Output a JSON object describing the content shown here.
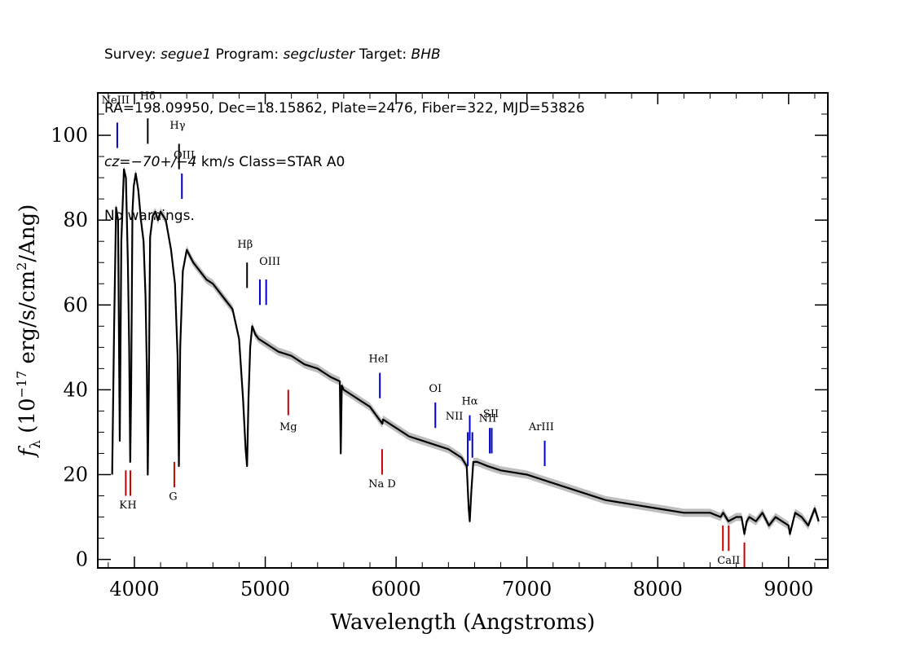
{
  "header": {
    "line1": {
      "survey_label": "Survey:",
      "survey_value": "segue1",
      "program_label": "Program:",
      "program_value": "segcluster",
      "target_label": "Target:",
      "target_value": "BHB"
    },
    "line2": "RA=198.09950, Dec=18.15862, Plate=2476, Fiber=322, MJD=53826",
    "line3": {
      "cz_label": "cz",
      "cz_value": "=−70+/−4",
      "cz_rest": " km/s Class=STAR A0"
    },
    "line4": "No warnings."
  },
  "chart_data": {
    "type": "line",
    "xlabel": "Wavelength (Angstroms)",
    "ylabel_parts": {
      "f": "f",
      "sub": "λ",
      "open": " (10",
      "exp": "−17",
      "mid": " erg/s/cm",
      "exp2": "2",
      "close": "/Ang)"
    },
    "xlim": [
      3720,
      9300
    ],
    "ylim": [
      -2,
      110
    ],
    "x_ticks": [
      4000,
      5000,
      6000,
      7000,
      8000,
      9000
    ],
    "x_tick_labels": [
      "4000",
      "5000",
      "6000",
      "7000",
      "8000",
      "9000"
    ],
    "y_ticks": [
      0,
      20,
      40,
      60,
      80,
      100
    ],
    "y_tick_labels": [
      "0",
      "20",
      "40",
      "60",
      "80",
      "100"
    ],
    "series": [
      {
        "color": "#000000",
        "x": [
          3830,
          3845,
          3860,
          3875,
          3888,
          3900,
          3920,
          3935,
          3950,
          3960,
          3968,
          3975,
          3985,
          3995,
          4010,
          4030,
          4050,
          4070,
          4085,
          4095,
          4102,
          4110,
          4120,
          4140,
          4160,
          4180,
          4200,
          4240,
          4280,
          4310,
          4330,
          4340,
          4350,
          4370,
          4400,
          4450,
          4500,
          4550,
          4600,
          4650,
          4700,
          4750,
          4800,
          4830,
          4850,
          4861,
          4872,
          4885,
          4900,
          4925,
          4950,
          5000,
          5100,
          5200,
          5300,
          5400,
          5500,
          5570,
          5577,
          5585,
          5600,
          5700,
          5800,
          5895,
          5900,
          6000,
          6100,
          6200,
          6300,
          6400,
          6500,
          6540,
          6555,
          6563,
          6575,
          6590,
          6620,
          6700,
          6800,
          7000,
          7200,
          7400,
          7600,
          7800,
          8000,
          8200,
          8400,
          8480,
          8500,
          8520,
          8540,
          8600,
          8640,
          8662,
          8680,
          8700,
          8750,
          8800,
          8850,
          8900,
          8950,
          9000,
          9010,
          9050,
          9100,
          9150,
          9200,
          9230
        ],
        "y": [
          20,
          55,
          83,
          80,
          28,
          75,
          92,
          90,
          70,
          50,
          23,
          40,
          82,
          88,
          91,
          87,
          80,
          75,
          62,
          45,
          20,
          40,
          76,
          81,
          82,
          80,
          82,
          80,
          73,
          65,
          48,
          22,
          50,
          68,
          73,
          70,
          68,
          66,
          65,
          63,
          61,
          59,
          52,
          38,
          26,
          22,
          38,
          50,
          55,
          53,
          52,
          51,
          49,
          48,
          46,
          45,
          43,
          42,
          25,
          41,
          40,
          38,
          36,
          32,
          33,
          31,
          29,
          28,
          27,
          26,
          24,
          22,
          12,
          9,
          16,
          23,
          23,
          22,
          21,
          20,
          18,
          16,
          14,
          13,
          12,
          11,
          11,
          10,
          11,
          10,
          9,
          10,
          10,
          6,
          9,
          10,
          9,
          11,
          8,
          10,
          9,
          8,
          6,
          11,
          10,
          8,
          12,
          9
        ]
      }
    ],
    "error_band_color": "#bdbdbd",
    "line_markers": [
      {
        "name": "NeIII",
        "x": 3869,
        "y1": 97,
        "y2": 103,
        "color": "#0000cc",
        "label_x": 3856,
        "label_y": 107.5
      },
      {
        "name": "Hδ",
        "x": 4102,
        "y1": 98,
        "y2": 104,
        "color": "#000000",
        "label_x": 4102,
        "label_y": 108.5
      },
      {
        "name": "Hγ",
        "x": 4341,
        "y1": 92,
        "y2": 98,
        "color": "#000000",
        "label_x": 4330,
        "label_y": 101.5
      },
      {
        "name": "OIII",
        "x": 4363,
        "y1": 85,
        "y2": 91,
        "color": "#0000cc",
        "label_x": 4380,
        "label_y": 94.5
      },
      {
        "name": "Hβ",
        "x": 4861,
        "y1": 64,
        "y2": 70,
        "color": "#000000",
        "label_x": 4846,
        "label_y": 73.5
      },
      {
        "name": "OIII",
        "x": 4959,
        "y1": 60,
        "y2": 66,
        "color": "#0000cc",
        "label_x": 5035,
        "label_y": 69.5
      },
      {
        "name": "OIII",
        "x": 5007,
        "y1": 60,
        "y2": 66,
        "color": "#0000cc",
        "label_x": 5035,
        "label_y": 69.5
      },
      {
        "name": "HeI",
        "x": 5876,
        "y1": 38,
        "y2": 44,
        "color": "#0000cc",
        "label_x": 5866,
        "label_y": 46.5
      },
      {
        "name": "OI",
        "x": 6300,
        "y1": 31,
        "y2": 37,
        "color": "#0000cc",
        "label_x": 6300,
        "label_y": 39.5
      },
      {
        "name": "NII",
        "x": 6548,
        "y1": 22,
        "y2": 30,
        "color": "#0000cc",
        "label_x": 6445,
        "label_y": 33
      },
      {
        "name": "Hα",
        "x": 6563,
        "y1": 28,
        "y2": 34,
        "color": "#0000cc",
        "label_x": 6563,
        "label_y": 36.5
      },
      {
        "name": "NII",
        "x": 6583,
        "y1": 24,
        "y2": 30,
        "color": "#0000cc",
        "label_x": 6700,
        "label_y": 32.5
      },
      {
        "name": "SII",
        "x": 6716,
        "y1": 25,
        "y2": 31,
        "color": "#0000cc",
        "label_x": 6725,
        "label_y": 33.5
      },
      {
        "name": "SII",
        "x": 6731,
        "y1": 25,
        "y2": 31,
        "color": "#0000cc",
        "label_x": 6725,
        "label_y": 33.5
      },
      {
        "name": "ArIII",
        "x": 7136,
        "y1": 22,
        "y2": 28,
        "color": "#0000cc",
        "label_x": 7110,
        "label_y": 30.5
      },
      {
        "name": "K",
        "x": 3934,
        "y1": 15,
        "y2": 21,
        "color": "#cc0000",
        "label_x": 3914,
        "label_y": 12
      },
      {
        "name": "H",
        "x": 3969,
        "y1": 15,
        "y2": 21,
        "color": "#cc0000",
        "label_x": 3982,
        "label_y": 12
      },
      {
        "name": "G",
        "x": 4305,
        "y1": 17,
        "y2": 23,
        "color": "#cc0000",
        "label_x": 4296,
        "label_y": 14
      },
      {
        "name": "Mg",
        "x": 5176,
        "y1": 34,
        "y2": 40,
        "color": "#cc0000",
        "label_x": 5176,
        "label_y": 30.5
      },
      {
        "name": "Na D",
        "x": 5893,
        "y1": 20,
        "y2": 26,
        "color": "#cc0000",
        "label_x": 5893,
        "label_y": 17
      },
      {
        "name": "CaII",
        "x": 8498,
        "y1": 2,
        "y2": 8,
        "color": "#cc0000",
        "label_x": 8542,
        "label_y": -1
      },
      {
        "name": "CaII",
        "x": 8542,
        "y1": 2,
        "y2": 8,
        "color": "#cc0000",
        "label_x": 8542,
        "label_y": -1
      },
      {
        "name": "CaII",
        "x": 8662,
        "y1": -2,
        "y2": 4,
        "color": "#cc0000",
        "label_x": 8542,
        "label_y": -1
      }
    ]
  }
}
